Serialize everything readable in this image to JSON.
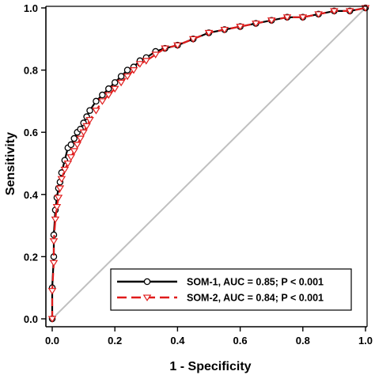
{
  "chart_data": {
    "type": "line",
    "title": "",
    "xlabel": "1 - Specificity",
    "ylabel": "Sensitivity",
    "xlim": [
      0,
      1
    ],
    "ylim": [
      0,
      1
    ],
    "xticks": [
      "0.0",
      "0.2",
      "0.4",
      "0.6",
      "0.8",
      "1.0"
    ],
    "yticks": [
      "0.0",
      "0.2",
      "0.4",
      "0.6",
      "0.8",
      "1.0"
    ],
    "grid": false,
    "legend_position": "bottom-right",
    "reference_line": {
      "x": [
        0,
        1
      ],
      "y": [
        0,
        1
      ],
      "color": "#c0c0c0"
    },
    "series": [
      {
        "name": "SOM-1, AUC = 0.85; P < 0.001",
        "color": "#000000",
        "dash": "solid",
        "marker": "circle",
        "x": [
          0.0,
          0.0,
          0.005,
          0.005,
          0.01,
          0.015,
          0.02,
          0.025,
          0.03,
          0.04,
          0.05,
          0.06,
          0.07,
          0.08,
          0.09,
          0.1,
          0.11,
          0.12,
          0.14,
          0.16,
          0.18,
          0.2,
          0.22,
          0.24,
          0.26,
          0.28,
          0.3,
          0.33,
          0.36,
          0.4,
          0.45,
          0.5,
          0.55,
          0.6,
          0.65,
          0.7,
          0.75,
          0.8,
          0.85,
          0.9,
          0.95,
          1.0
        ],
        "y": [
          0.0,
          0.1,
          0.2,
          0.27,
          0.35,
          0.39,
          0.42,
          0.44,
          0.47,
          0.51,
          0.55,
          0.56,
          0.58,
          0.6,
          0.61,
          0.63,
          0.65,
          0.67,
          0.7,
          0.72,
          0.74,
          0.76,
          0.78,
          0.8,
          0.81,
          0.83,
          0.84,
          0.86,
          0.87,
          0.88,
          0.9,
          0.92,
          0.93,
          0.94,
          0.95,
          0.96,
          0.97,
          0.97,
          0.98,
          0.99,
          0.99,
          1.0
        ]
      },
      {
        "name": "SOM-2, AUC = 0.84; P < 0.001",
        "color": "#e01b1b",
        "dash": "dashed",
        "marker": "triangle-down",
        "x": [
          0.0,
          0.0,
          0.005,
          0.005,
          0.01,
          0.015,
          0.02,
          0.025,
          0.03,
          0.04,
          0.05,
          0.06,
          0.07,
          0.08,
          0.09,
          0.1,
          0.11,
          0.12,
          0.14,
          0.16,
          0.18,
          0.2,
          0.22,
          0.24,
          0.26,
          0.28,
          0.3,
          0.33,
          0.36,
          0.4,
          0.45,
          0.5,
          0.55,
          0.6,
          0.65,
          0.7,
          0.75,
          0.8,
          0.85,
          0.9,
          0.95,
          1.0
        ],
        "y": [
          0.0,
          0.09,
          0.18,
          0.25,
          0.32,
          0.36,
          0.39,
          0.42,
          0.45,
          0.48,
          0.5,
          0.52,
          0.54,
          0.56,
          0.58,
          0.6,
          0.62,
          0.64,
          0.67,
          0.7,
          0.72,
          0.74,
          0.76,
          0.78,
          0.8,
          0.82,
          0.83,
          0.85,
          0.87,
          0.88,
          0.9,
          0.92,
          0.93,
          0.94,
          0.95,
          0.96,
          0.97,
          0.97,
          0.98,
          0.99,
          0.99,
          1.0
        ]
      }
    ]
  }
}
